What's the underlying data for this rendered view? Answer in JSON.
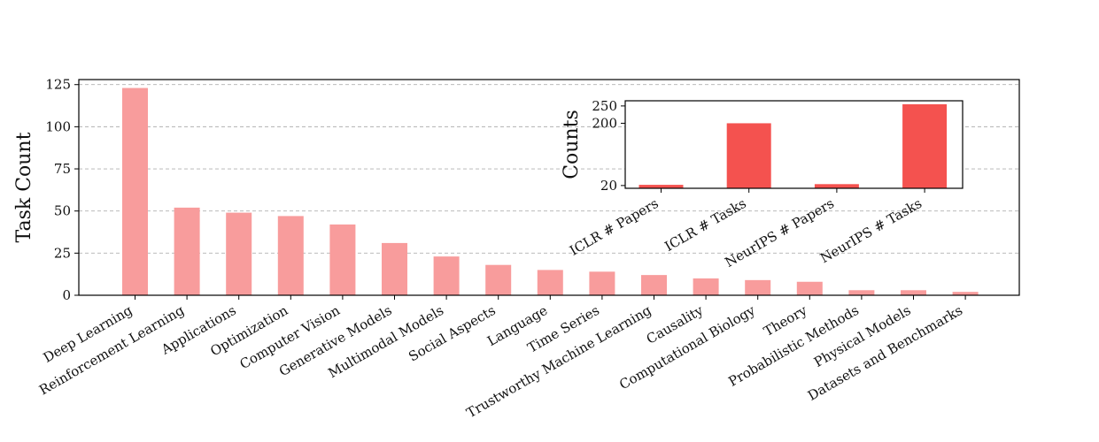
{
  "chart_data": [
    {
      "type": "bar",
      "ylabel": "Task Count",
      "xlabel": "",
      "ylim": [
        0,
        128
      ],
      "yticks": [
        0,
        25,
        50,
        75,
        100,
        125
      ],
      "grid": "y-dashed",
      "bar_color": "#f89c9c",
      "categories": [
        "Deep Learning",
        "Reinforcement Learning",
        "Applications",
        "Optimization",
        "Computer Vision",
        "Generative Models",
        "Multimodal Models",
        "Social Aspects",
        "Language",
        "Time Series",
        "Trustworthy Machine Learning",
        "Causality",
        "Computational Biology",
        "Theory",
        "Probabilistic Methods",
        "Physical Models",
        "Datasets and Benchmarks"
      ],
      "values": [
        123,
        52,
        49,
        47,
        42,
        31,
        23,
        18,
        15,
        14,
        12,
        10,
        9,
        8,
        3,
        3,
        2
      ]
    },
    {
      "type": "bar",
      "ylabel": "Counts",
      "xlabel": "",
      "ylim": [
        12,
        265
      ],
      "yticks": [
        20,
        200,
        250
      ],
      "bar_color": "#f4524f",
      "categories": [
        "ICLR # Papers",
        "ICLR # Tasks",
        "NeurIPS # Papers",
        "NeurIPS # Tasks"
      ],
      "values": [
        22,
        200,
        24,
        255
      ]
    }
  ]
}
